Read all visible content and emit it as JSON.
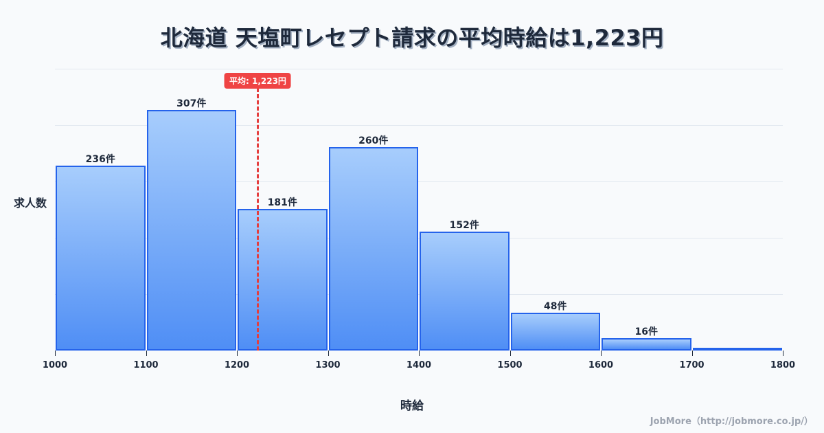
{
  "header": {
    "title": "北海道 天塩町レセプト請求の平均時給は1,223円"
  },
  "average": {
    "label": "平均: 1,223円",
    "value": 1223,
    "color": "#ef4444"
  },
  "axes": {
    "ylabel": "求人数",
    "xlabel": "時給"
  },
  "credit": "JobMore（http://jobmore.co.jp/）",
  "colors": {
    "bar_top": "#a7cdfc",
    "bar_bottom": "#4f8ef5",
    "bar_border": "#2563eb",
    "background": "#f8fafc"
  },
  "chart_data": {
    "type": "bar",
    "title": "北海道 天塩町レセプト請求の平均時給は1,223円",
    "xlabel": "時給",
    "ylabel": "求人数",
    "bins": [
      1000,
      1100,
      1200,
      1300,
      1400,
      1500,
      1600,
      1700,
      1800
    ],
    "categories": [
      "1000-1100",
      "1100-1200",
      "1200-1300",
      "1300-1400",
      "1400-1500",
      "1500-1600",
      "1600-1700",
      "1700-1800"
    ],
    "values": [
      236,
      307,
      181,
      260,
      152,
      48,
      16,
      0
    ],
    "labels": [
      "236件",
      "307件",
      "181件",
      "260件",
      "152件",
      "48件",
      "16件",
      ""
    ],
    "x_ticks": [
      "1000",
      "1100",
      "1200",
      "1300",
      "1400",
      "1500",
      "1600",
      "1700",
      "1800"
    ],
    "ylim": [
      0,
      360
    ],
    "grid": true,
    "annotations": [
      {
        "type": "vline",
        "x": 1223,
        "label": "平均: 1,223円"
      }
    ]
  }
}
